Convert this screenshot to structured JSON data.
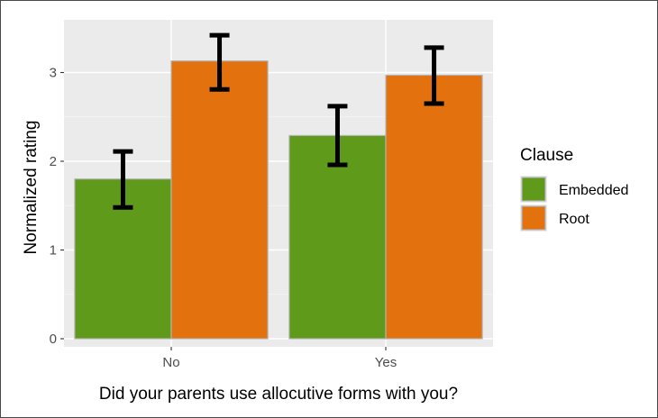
{
  "chart_data": {
    "type": "bar",
    "categories": [
      "No",
      "Yes"
    ],
    "series": [
      {
        "name": "Embedded",
        "color": "#5f9a1b",
        "values": [
          1.8,
          2.29
        ],
        "err_low": [
          1.48,
          1.96
        ],
        "err_high": [
          2.11,
          2.62
        ]
      },
      {
        "name": "Root",
        "color": "#e2710e",
        "values": [
          3.13,
          2.97
        ],
        "err_low": [
          2.81,
          2.65
        ],
        "err_high": [
          3.42,
          3.28
        ]
      }
    ],
    "xlabel": "Did your parents use allocutive forms with you?",
    "ylabel": "Normalized rating",
    "ylim": [
      0,
      3.5
    ],
    "yticks": [
      0,
      1,
      2,
      3
    ],
    "grid": true,
    "legend": {
      "title": "Clause",
      "placement": "right"
    },
    "panel_background": "#ebebeb"
  }
}
